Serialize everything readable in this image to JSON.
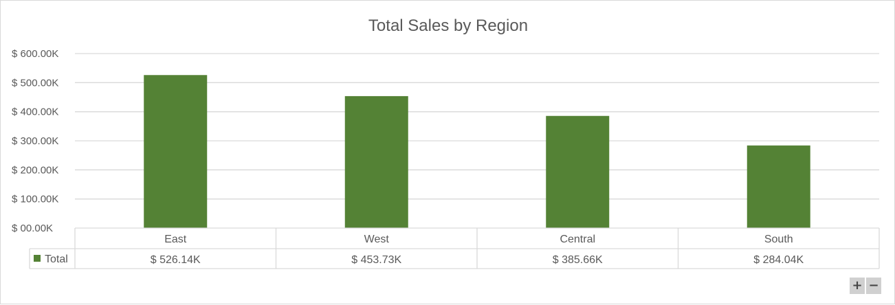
{
  "chart_data": {
    "type": "bar",
    "title": "Total Sales by Region",
    "categories": [
      "East",
      "West",
      "Central",
      "South"
    ],
    "series": [
      {
        "name": "Total",
        "values": [
          526.14,
          453.73,
          385.66,
          284.04
        ],
        "labels": [
          "$ 526.14K",
          "$ 453.73K",
          "$ 385.66K",
          "$ 284.04K"
        ]
      }
    ],
    "ylim": [
      0,
      600
    ],
    "yticks": [
      0,
      100,
      200,
      300,
      400,
      500,
      600
    ],
    "ytick_labels": [
      "$ 00.00K",
      "$ 100.00K",
      "$ 200.00K",
      "$ 300.00K",
      "$ 400.00K",
      "$ 500.00K",
      "$ 600.00K"
    ],
    "xlabel": "",
    "ylabel": "",
    "grid": true,
    "legend": "data-table",
    "bar_color": "#548235",
    "gridline_color": "#d9d9d9",
    "text_color": "#595959"
  },
  "controls": {
    "zoom_in": "+",
    "zoom_out": "−"
  }
}
